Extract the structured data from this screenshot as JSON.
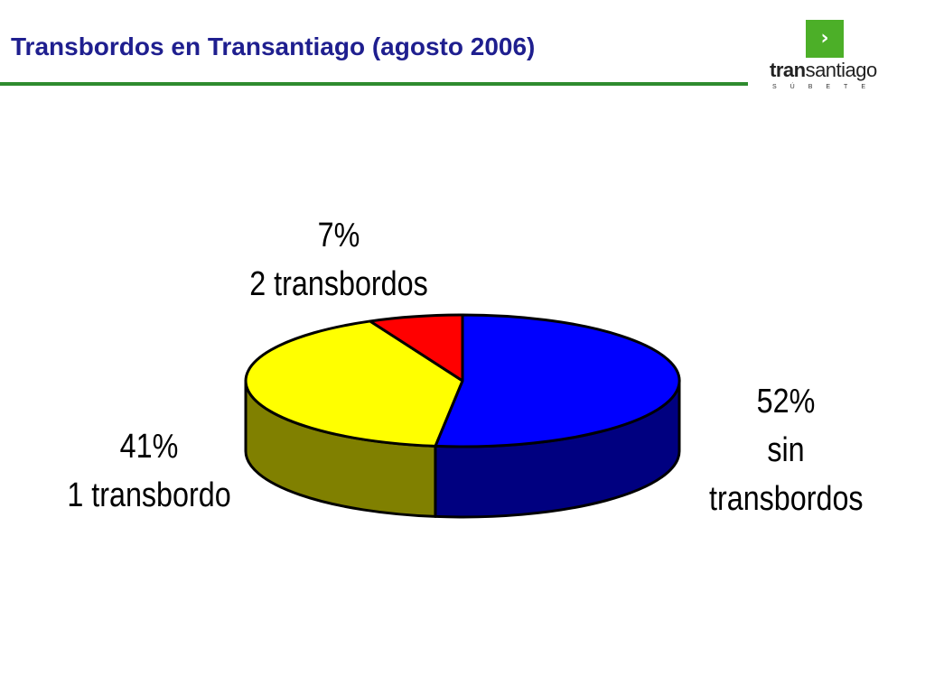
{
  "header": {
    "title": "Transbordos en Transantiago (agosto 2006)",
    "title_color": "#1f1f8f",
    "rule_color": "#2e8b2e"
  },
  "logo": {
    "icon": "chevron-right-icon",
    "square_color": "#4caf28",
    "word_bold": "tran",
    "word_rest": "santiago",
    "tagline": "SÚBETE"
  },
  "chart_data": {
    "type": "pie",
    "style": "3d",
    "title": "",
    "slices": [
      {
        "percent_label": "52%",
        "label_lines": [
          "sin",
          "transbordos"
        ],
        "value": 52,
        "color": "#0000ff",
        "side_color": "#000080"
      },
      {
        "percent_label": "41%",
        "label_lines": [
          "1 transbordo"
        ],
        "value": 41,
        "color": "#ffff00",
        "side_color": "#808000"
      },
      {
        "percent_label": "7%",
        "label_lines": [
          "2 transbordos"
        ],
        "value": 7,
        "color": "#ff0000",
        "side_color": "#800000"
      }
    ]
  }
}
